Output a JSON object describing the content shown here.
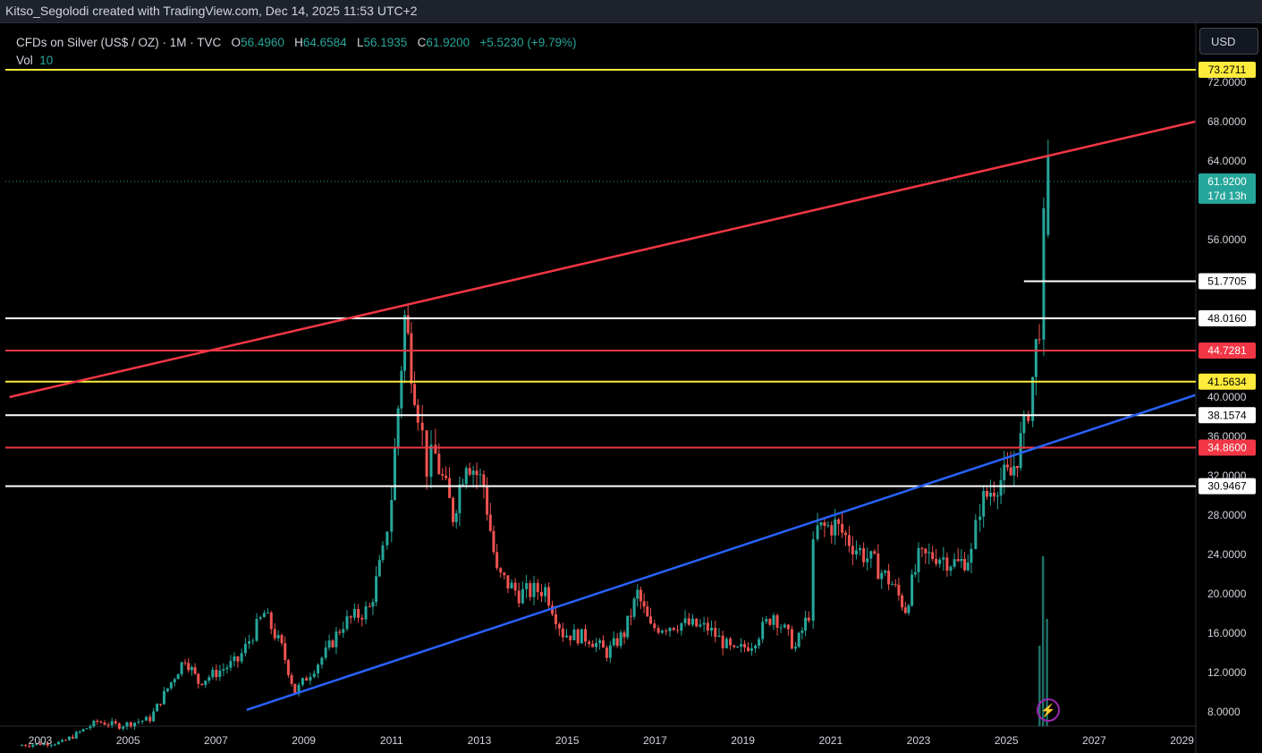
{
  "header": {
    "attribution": "Kitso_Segolodi created with TradingView.com, Dec 14, 2025 11:53 UTC+2"
  },
  "legend": {
    "symbol": "CFDs on Silver (US$ / OZ) · 1M · TVC",
    "open_label": "O",
    "open": "56.4960",
    "high_label": "H",
    "high": "64.6584",
    "low_label": "L",
    "low": "56.1935",
    "close_label": "C",
    "close": "61.9200",
    "change": "+5.5230 (+9.79%)",
    "vol_label": "Vol",
    "vol": "10"
  },
  "currency_button": "USD",
  "zoom_icon": "lightning-icon",
  "colors": {
    "background": "#000000",
    "up": "#26a69a",
    "down": "#ef5350",
    "yellow": "#ffeb3b",
    "red_line": "#f23645",
    "blue_line": "#2962ff",
    "white": "#ffffff"
  },
  "chart_data": {
    "type": "candlestick",
    "x_ticks": [
      "2003",
      "2005",
      "2007",
      "2009",
      "2011",
      "2013",
      "2015",
      "2017",
      "2019",
      "2021",
      "2023",
      "2025",
      "2027",
      "2029"
    ],
    "y_ticks": [
      "8.0000",
      "12.0000",
      "16.0000",
      "20.0000",
      "24.0000",
      "28.0000",
      "32.0000",
      "36.0000",
      "40.0000",
      "56.0000",
      "64.0000",
      "68.0000",
      "72.0000"
    ],
    "last_price": {
      "value": 61.92,
      "label": "61.9200",
      "countdown": "17d 13h"
    },
    "horizontal_levels": [
      {
        "value": 73.2711,
        "label": "73.2711",
        "color": "yellow"
      },
      {
        "value": 51.7705,
        "label": "51.7705",
        "color": "white",
        "start_year": 2025.4
      },
      {
        "value": 48.016,
        "label": "48.0160",
        "color": "white"
      },
      {
        "value": 44.7281,
        "label": "44.7281",
        "color": "red"
      },
      {
        "value": 41.5634,
        "label": "41.5634",
        "color": "yellow"
      },
      {
        "value": 38.1574,
        "label": "38.1574",
        "color": "white"
      },
      {
        "value": 34.86,
        "label": "34.8600",
        "color": "red"
      },
      {
        "value": 30.9467,
        "label": "30.9467",
        "color": "white"
      }
    ],
    "trendlines": [
      {
        "name": "resistance",
        "color": "red",
        "points": [
          [
            2002.3,
            40.0
          ],
          [
            2029.3,
            68.0
          ]
        ]
      },
      {
        "name": "support",
        "color": "blue",
        "points": [
          [
            2007.7,
            8.2
          ],
          [
            2029.3,
            40.2
          ]
        ]
      }
    ],
    "price_anchors": [
      [
        2002.5,
        4.6
      ],
      [
        2003.5,
        4.9
      ],
      [
        2004.3,
        7.0
      ],
      [
        2004.8,
        6.6
      ],
      [
        2005.5,
        7.3
      ],
      [
        2006.3,
        13.5
      ],
      [
        2006.6,
        11.0
      ],
      [
        2007.5,
        13.2
      ],
      [
        2008.1,
        18.0
      ],
      [
        2008.5,
        14.5
      ],
      [
        2008.8,
        10.0
      ],
      [
        2009.5,
        14.0
      ],
      [
        2009.9,
        17.0
      ],
      [
        2010.5,
        18.5
      ],
      [
        2010.8,
        24.0
      ],
      [
        2011.0,
        30.0
      ],
      [
        2011.3,
        48.0
      ],
      [
        2011.6,
        39.0
      ],
      [
        2011.8,
        33.0
      ],
      [
        2012.0,
        34.0
      ],
      [
        2012.4,
        28.0
      ],
      [
        2012.7,
        34.0
      ],
      [
        2013.1,
        31.0
      ],
      [
        2013.4,
        22.0
      ],
      [
        2013.9,
        20.0
      ],
      [
        2014.5,
        20.5
      ],
      [
        2014.9,
        16.0
      ],
      [
        2015.5,
        15.5
      ],
      [
        2015.9,
        14.0
      ],
      [
        2016.3,
        16.0
      ],
      [
        2016.6,
        20.0
      ],
      [
        2016.9,
        16.5
      ],
      [
        2017.6,
        17.0
      ],
      [
        2018.2,
        16.5
      ],
      [
        2018.8,
        14.0
      ],
      [
        2019.2,
        15.0
      ],
      [
        2019.7,
        18.0
      ],
      [
        2020.2,
        14.5
      ],
      [
        2020.5,
        18.0
      ],
      [
        2020.6,
        24.5
      ],
      [
        2020.7,
        26.5
      ],
      [
        2021.1,
        27.0
      ],
      [
        2021.5,
        25.0
      ],
      [
        2022.0,
        23.0
      ],
      [
        2022.4,
        21.0
      ],
      [
        2022.7,
        18.5
      ],
      [
        2023.0,
        23.5
      ],
      [
        2023.4,
        24.0
      ],
      [
        2023.9,
        23.0
      ],
      [
        2024.2,
        24.0
      ],
      [
        2024.4,
        29.0
      ],
      [
        2024.8,
        31.5
      ],
      [
        2025.1,
        32.0
      ],
      [
        2025.4,
        36.5
      ],
      [
        2025.6,
        42.0
      ],
      [
        2025.75,
        48.0
      ],
      [
        2025.85,
        56.5
      ],
      [
        2025.95,
        61.92
      ]
    ],
    "volume_bars": [
      {
        "x": 2025.75,
        "v": 0.45
      },
      {
        "x": 2025.83,
        "v": 0.95
      },
      {
        "x": 2025.92,
        "v": 0.6
      }
    ]
  }
}
